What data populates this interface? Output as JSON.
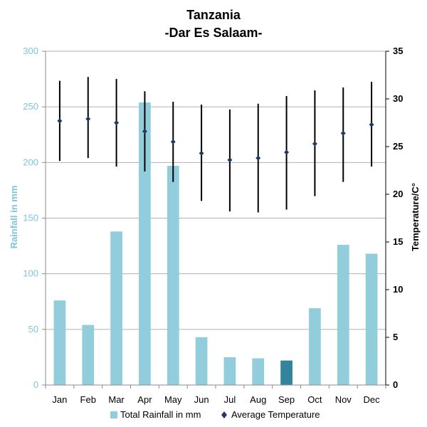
{
  "chart_data": {
    "type": "bar",
    "title": "Tanzania",
    "subtitle": "-Dar Es Salaam-",
    "categories": [
      "Jan",
      "Feb",
      "Mar",
      "Apr",
      "May",
      "Jun",
      "Jul",
      "Aug",
      "Sep",
      "Oct",
      "Nov",
      "Dec"
    ],
    "rainfall": {
      "name": "Total Rainfall in mm",
      "values": [
        76,
        54,
        138,
        254,
        197,
        43,
        25,
        24,
        22,
        69,
        126,
        118
      ],
      "color": "#92cddc",
      "highlight_color": "#31849b",
      "highlight_index": 8
    },
    "temperature": {
      "name": "Average Temperature",
      "avg": [
        27.7,
        27.9,
        27.5,
        26.6,
        25.5,
        24.3,
        23.6,
        23.8,
        24.4,
        25.3,
        26.4,
        27.3
      ],
      "min": [
        23.5,
        23.8,
        22.9,
        22.4,
        21.3,
        19.3,
        18.2,
        18.1,
        18.4,
        19.8,
        21.3,
        22.9
      ],
      "max": [
        31.9,
        32.3,
        32.1,
        30.8,
        29.7,
        29.4,
        28.9,
        29.5,
        30.3,
        30.9,
        31.2,
        31.8
      ],
      "color": "#1f3864"
    },
    "ylabel": "Rainfall in mm",
    "y2label": "Temperature/C°",
    "ylim": [
      0,
      300
    ],
    "y2lim": [
      0,
      35
    ],
    "yticks": [
      0,
      50,
      100,
      150,
      200,
      250,
      300
    ],
    "y2ticks": [
      0,
      5,
      10,
      15,
      20,
      25,
      30,
      35
    ],
    "grid": true,
    "legend_position": "bottom"
  }
}
